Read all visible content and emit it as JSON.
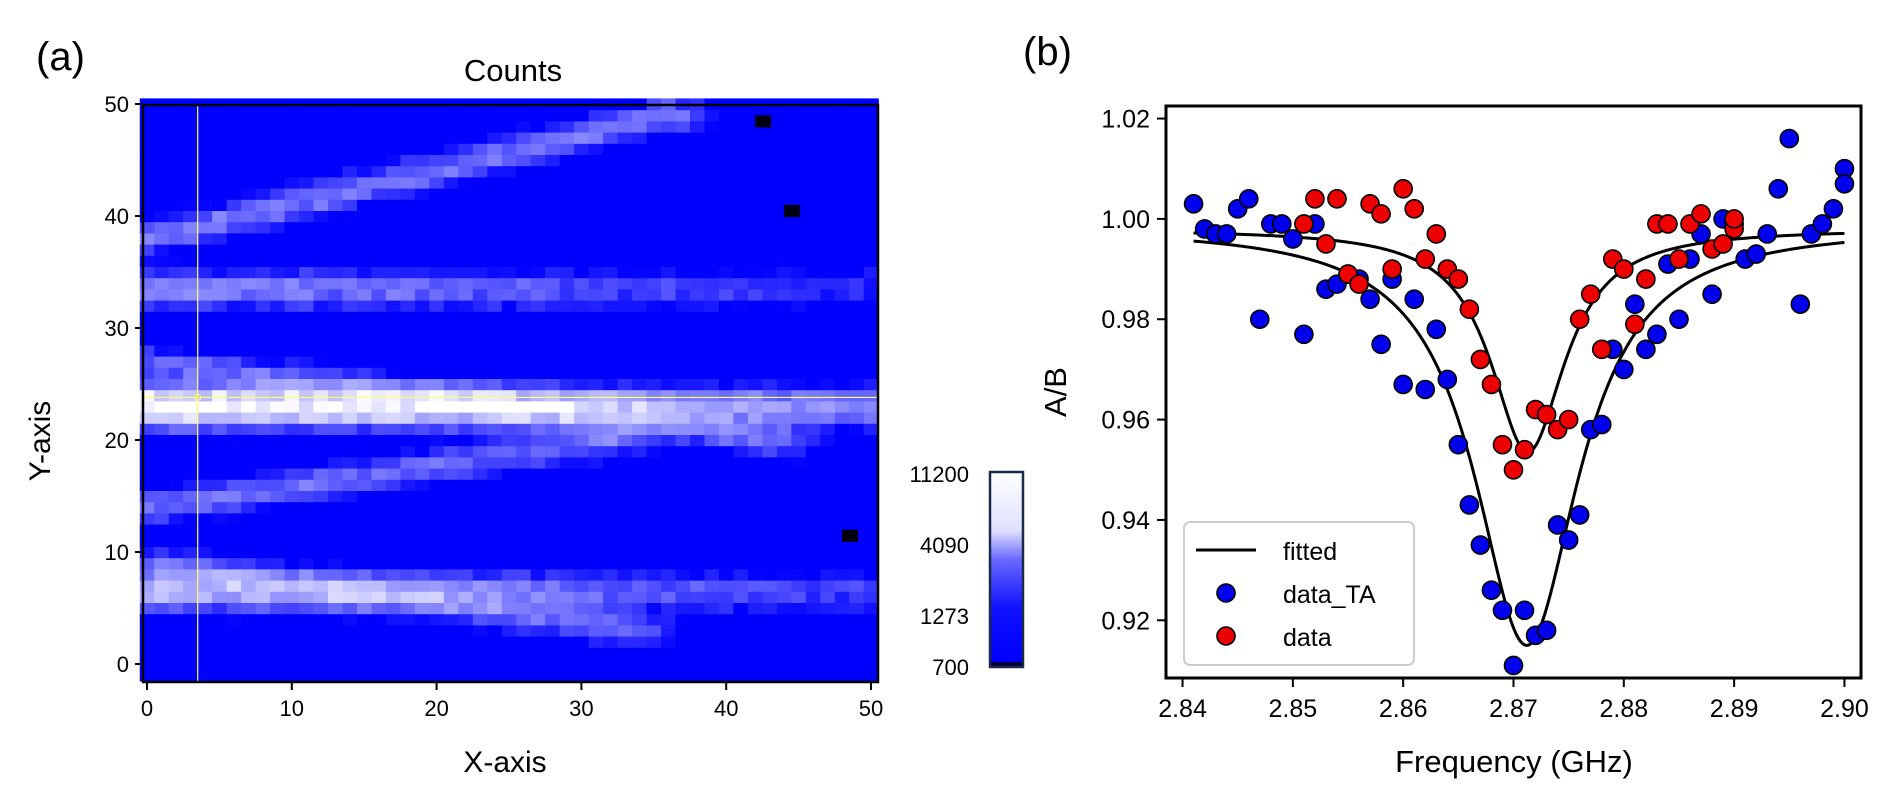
{
  "panel_a": {
    "label": "(a)",
    "title": "Counts",
    "xlabel": "X-axis",
    "ylabel": "Y-axis",
    "xticks": [
      "0",
      "10",
      "20",
      "30",
      "40",
      "50"
    ],
    "yticks": [
      "0",
      "10",
      "20",
      "30",
      "40",
      "50"
    ],
    "colorbar_ticks": [
      "700",
      "1273",
      "4090",
      "11200"
    ],
    "crosshair_color": "#ffff66"
  },
  "panel_b": {
    "label": "(b)",
    "xlabel": "Frequency (GHz)",
    "ylabel": "A/B",
    "xticks": [
      "2.84",
      "2.85",
      "2.86",
      "2.87",
      "2.88",
      "2.89",
      "2.90"
    ],
    "yticks": [
      "0.92",
      "0.94",
      "0.96",
      "0.98",
      "1.00",
      "1.02"
    ],
    "legend": {
      "fitted": "fitted",
      "data_TA": "data_TA",
      "data": "data"
    },
    "colors": {
      "data_TA": "#0000ee",
      "data": "#ee0000",
      "fit": "#000000"
    }
  },
  "chart_data": [
    {
      "type": "heatmap",
      "title": "Counts",
      "xlabel": "X-axis",
      "ylabel": "Y-axis",
      "xlim": [
        0,
        50
      ],
      "ylim": [
        0,
        50
      ],
      "colorbar": {
        "min": 700,
        "max": 11200,
        "ticks": [
          700,
          1273,
          4090,
          11200
        ],
        "scale": "log"
      },
      "colormap": [
        "#000040",
        "#0000ff",
        "#ffffff"
      ],
      "crosshair": {
        "x": 3.5,
        "y": 23.8
      },
      "bands": [
        {
          "y": 23,
          "x_end": 50,
          "peak": 11200
        },
        {
          "y": 6.5,
          "x_end": 50,
          "peak": 5200
        },
        {
          "y": 33.5,
          "x_end": 50,
          "peak": 3800
        },
        {
          "y_start": 38,
          "y_end": 49,
          "x_end": 36,
          "peak": 3000
        },
        {
          "y_start": 27,
          "y_end": 20,
          "x_end": 44,
          "peak": 2600
        },
        {
          "y_start": 14,
          "y_end": 20,
          "x_end": 32,
          "peak": 2700
        },
        {
          "y_start": 9,
          "y_end": 3,
          "x_end": 34,
          "peak": 2500
        }
      ],
      "dead_pixels": [
        [
          42.5,
          48.5
        ],
        [
          44.5,
          40.5
        ],
        [
          48.5,
          11.5
        ]
      ]
    },
    {
      "type": "scatter",
      "xlabel": "Frequency (GHz)",
      "ylabel": "A/B",
      "xlim": [
        2.8385,
        2.9015
      ],
      "ylim": [
        0.9085,
        1.0225
      ],
      "grid": false,
      "legend_position": "lower-left",
      "series": [
        {
          "name": "data_TA",
          "x": [
            2.841,
            2.842,
            2.843,
            2.844,
            2.845,
            2.846,
            2.847,
            2.848,
            2.849,
            2.85,
            2.851,
            2.852,
            2.853,
            2.854,
            2.855,
            2.856,
            2.857,
            2.858,
            2.859,
            2.86,
            2.861,
            2.862,
            2.863,
            2.864,
            2.865,
            2.866,
            2.867,
            2.868,
            2.869,
            2.87,
            2.871,
            2.872,
            2.873,
            2.874,
            2.875,
            2.876,
            2.877,
            2.878,
            2.879,
            2.88,
            2.881,
            2.882,
            2.883,
            2.884,
            2.885,
            2.886,
            2.887,
            2.888,
            2.889,
            2.89,
            2.891,
            2.892,
            2.893,
            2.894,
            2.895,
            2.896,
            2.897,
            2.898,
            2.899,
            2.9,
            2.9
          ],
          "y": [
            1.003,
            0.998,
            0.997,
            0.997,
            1.002,
            1.004,
            0.98,
            0.999,
            0.999,
            0.996,
            0.977,
            0.999,
            0.986,
            0.987,
            0.989,
            0.988,
            0.984,
            0.975,
            0.988,
            0.967,
            0.984,
            0.966,
            0.978,
            0.968,
            0.955,
            0.943,
            0.935,
            0.926,
            0.922,
            0.911,
            0.922,
            0.917,
            0.918,
            0.939,
            0.936,
            0.941,
            0.958,
            0.959,
            0.974,
            0.97,
            0.983,
            0.974,
            0.977,
            0.991,
            0.98,
            0.992,
            0.997,
            0.985,
            1.0,
            0.999,
            0.992,
            0.993,
            0.997,
            1.006,
            1.016,
            0.983,
            0.997,
            0.999,
            1.002,
            1.01,
            1.007
          ]
        },
        {
          "name": "data",
          "x": [
            2.851,
            2.852,
            2.853,
            2.854,
            2.855,
            2.856,
            2.857,
            2.858,
            2.859,
            2.86,
            2.861,
            2.862,
            2.863,
            2.864,
            2.865,
            2.866,
            2.867,
            2.868,
            2.869,
            2.87,
            2.871,
            2.872,
            2.873,
            2.874,
            2.875,
            2.876,
            2.877,
            2.878,
            2.879,
            2.88,
            2.881,
            2.882,
            2.883,
            2.884,
            2.885,
            2.886,
            2.887,
            2.888,
            2.889,
            2.89,
            2.89
          ],
          "y": [
            0.999,
            1.004,
            0.995,
            1.004,
            0.989,
            0.987,
            1.003,
            1.001,
            0.99,
            1.006,
            1.002,
            0.992,
            0.997,
            0.99,
            0.988,
            0.982,
            0.972,
            0.967,
            0.955,
            0.95,
            0.954,
            0.962,
            0.961,
            0.958,
            0.96,
            0.98,
            0.985,
            0.974,
            0.992,
            0.99,
            0.979,
            0.988,
            0.999,
            0.999,
            0.992,
            0.999,
            1.001,
            0.994,
            0.995,
            0.998,
            1.0
          ]
        }
      ],
      "fits": [
        {
          "name": "fitted",
          "model": "lorentzian",
          "baseline": 0.9985,
          "center": 2.8712,
          "depth": 0.0835,
          "fwhm": 0.0115
        },
        {
          "name": "fitted",
          "model": "lorentzian",
          "baseline": 0.998,
          "center": 2.8713,
          "depth": 0.0445,
          "fwhm": 0.0082
        }
      ]
    }
  ]
}
